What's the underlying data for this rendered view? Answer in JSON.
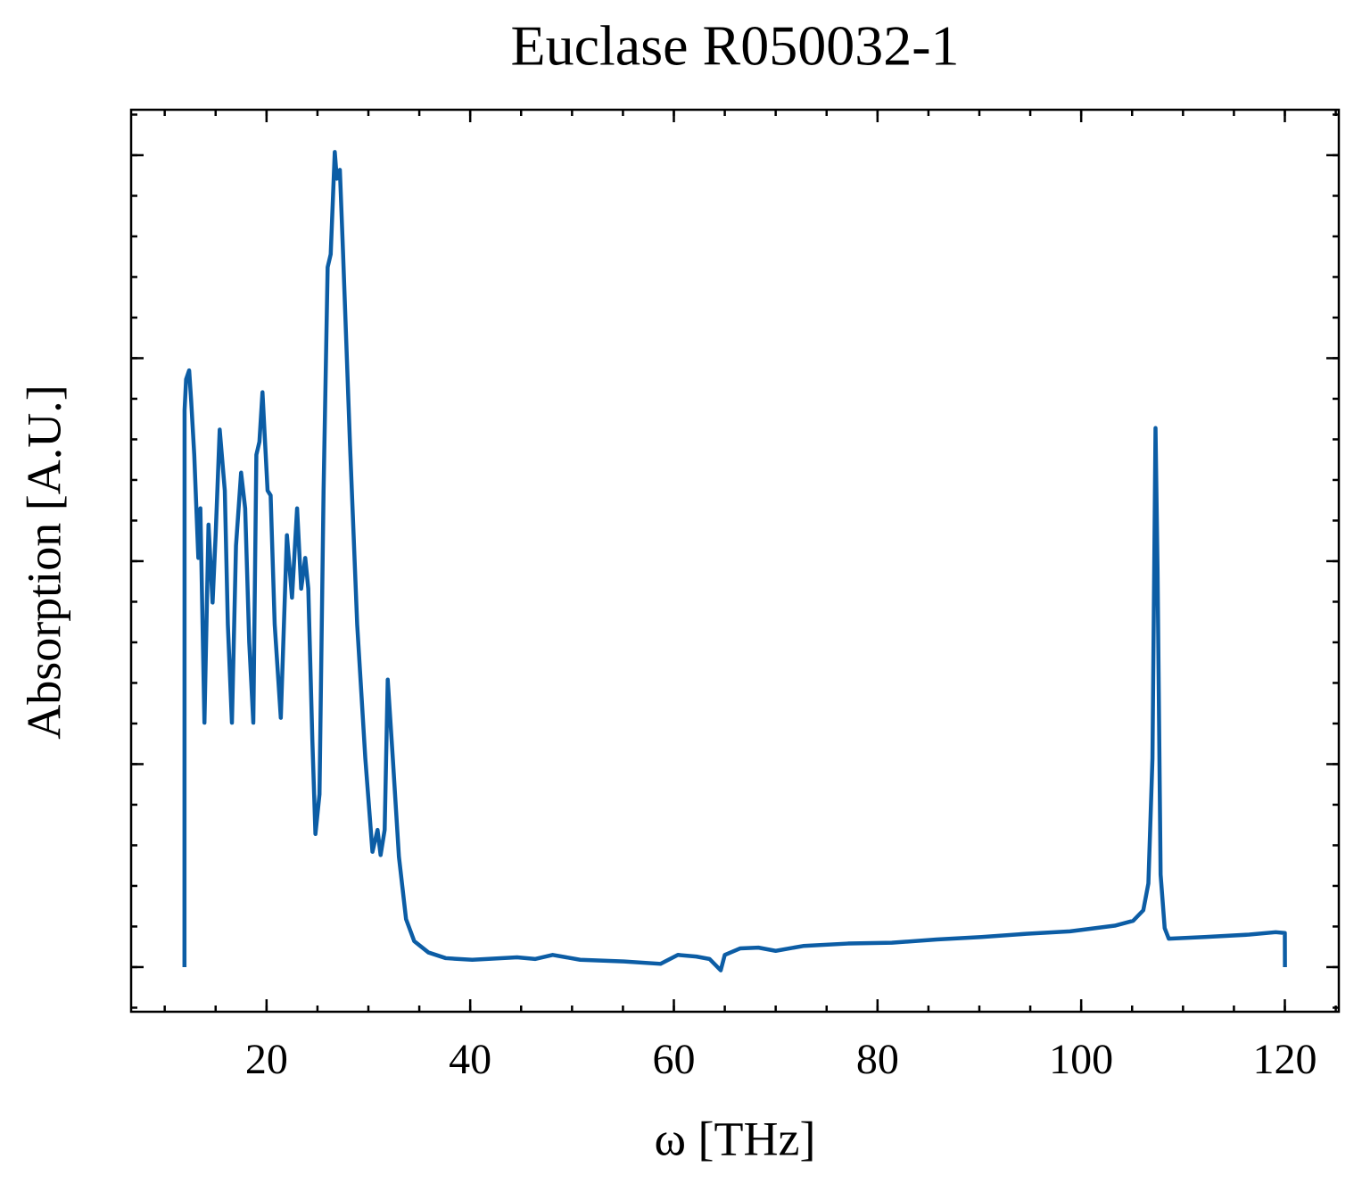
{
  "chart_data": {
    "type": "line",
    "title": "Euclase R050032-1",
    "xlabel": "ω [THz]",
    "ylabel": "Absorption [A.U.]",
    "xlim": [
      6.7,
      125.3
    ],
    "xticks": [
      20,
      40,
      60,
      80,
      100,
      120
    ],
    "xminor_step": 5,
    "ylim": [
      -0.055,
      1.056
    ],
    "yticks": [
      0,
      0.25,
      0.5,
      0.75,
      1
    ],
    "yminor_step": 0.05,
    "ytick_labels": false,
    "ticks_inward": true,
    "mirror_ticks": true,
    "grid": false,
    "series": [
      {
        "color": "#0c5da5",
        "x": [
          11.94,
          11.95,
          12.1,
          12.4,
          12.6,
          12.9,
          13.3,
          13.5,
          13.9,
          14.3,
          14.7,
          15.0,
          15.4,
          15.9,
          16.2,
          16.6,
          17.0,
          17.5,
          17.9,
          18.3,
          18.7,
          19.0,
          19.3,
          19.6,
          20.1,
          20.4,
          20.8,
          21.4,
          22.0,
          22.5,
          23.0,
          23.4,
          23.8,
          24.1,
          24.5,
          24.8,
          25.2,
          25.6,
          26.0,
          26.3,
          26.7,
          26.9,
          27.2,
          27.5,
          28.2,
          28.9,
          29.7,
          30.4,
          30.9,
          31.2,
          31.6,
          31.9,
          32.4,
          33.0,
          33.7,
          34.5,
          35.9,
          37.6,
          40.2,
          44.6,
          46.4,
          48.1,
          50.8,
          55.1,
          58.7,
          60.4,
          62.2,
          63.5,
          64.6,
          65.0,
          66.5,
          68.3,
          70.0,
          72.7,
          77.1,
          81.4,
          85.8,
          90.2,
          94.6,
          98.9,
          103.3,
          105.1,
          106.1,
          106.6,
          107.0,
          107.3,
          107.5,
          107.8,
          108.2,
          108.6,
          112.1,
          116.5,
          119.1,
          120.0,
          120.01
        ],
        "values": [
          0,
          0.686,
          0.724,
          0.735,
          0.697,
          0.631,
          0.504,
          0.565,
          0.301,
          0.545,
          0.449,
          0.532,
          0.662,
          0.587,
          0.422,
          0.301,
          0.519,
          0.609,
          0.565,
          0.4,
          0.301,
          0.631,
          0.647,
          0.708,
          0.587,
          0.581,
          0.422,
          0.307,
          0.532,
          0.455,
          0.565,
          0.466,
          0.504,
          0.466,
          0.279,
          0.164,
          0.213,
          0.587,
          0.862,
          0.878,
          1.004,
          0.971,
          0.982,
          0.884,
          0.642,
          0.422,
          0.257,
          0.142,
          0.169,
          0.138,
          0.169,
          0.354,
          0.257,
          0.136,
          0.059,
          0.032,
          0.018,
          0.011,
          0.009,
          0.012,
          0.01,
          0.015,
          0.009,
          0.007,
          0.004,
          0.015,
          0.013,
          0.01,
          -0.004,
          0.015,
          0.023,
          0.024,
          0.02,
          0.026,
          0.029,
          0.03,
          0.034,
          0.037,
          0.041,
          0.044,
          0.051,
          0.057,
          0.07,
          0.103,
          0.257,
          0.664,
          0.488,
          0.114,
          0.048,
          0.035,
          0.037,
          0.04,
          0.043,
          0.042,
          0
        ]
      }
    ]
  }
}
